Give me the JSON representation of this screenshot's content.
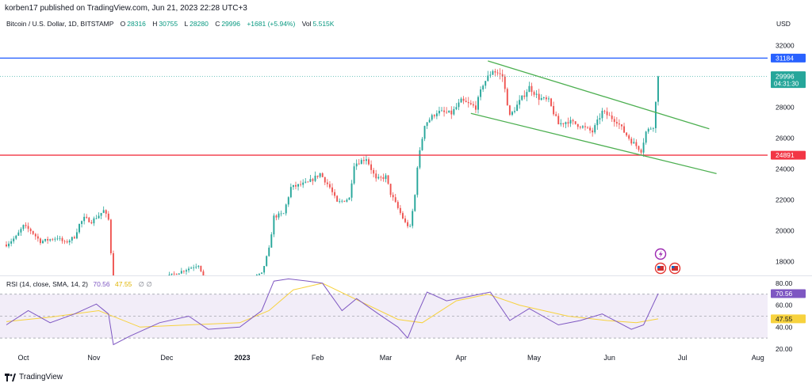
{
  "header": {
    "publish_line": "korben17 published on TradingView.com, Jun 21, 2023 22:28 UTC+3"
  },
  "legend": {
    "symbol": "Bitcoin / U.S. Dollar, 1D, BITSTAMP",
    "o_label": "O",
    "o_value": "28316",
    "h_label": "H",
    "h_value": "30755",
    "l_label": "L",
    "l_value": "28280",
    "c_label": "C",
    "c_value": "29996",
    "change": "+1681 (+5.94%)",
    "vol_label": "Vol",
    "vol_value": "5.515K"
  },
  "rsi_legend": {
    "label": "RSI (14, close, SMA, 14, 2)",
    "rsi_value": "70.56",
    "sma_value": "47.55",
    "extra": "∅  ∅"
  },
  "price_axis": {
    "unit": "USD",
    "ticks": [
      "32000",
      "28000",
      "26000",
      "24000",
      "22000",
      "20000",
      "18000"
    ],
    "resistance_label": "31184",
    "last_price_label": "29996",
    "countdown_label": "04:31:30",
    "support_label": "24891"
  },
  "rsi_axis": {
    "ticks": [
      "80.00",
      "60.00",
      "40.00",
      "20.00"
    ],
    "rsi_label": "70.56",
    "sma_label": "47.55"
  },
  "time_axis": {
    "ticks": [
      "Oct",
      "Nov",
      "Dec",
      "2023",
      "Feb",
      "Mar",
      "Apr",
      "May",
      "Jun",
      "Jul",
      "Aug"
    ]
  },
  "footer": {
    "brand": "TradingView"
  },
  "colors": {
    "up": "#26a69a",
    "down": "#ef5350",
    "resistance": "#2962ff",
    "support": "#f23645",
    "channel": "#4caf50",
    "rsi": "#7e57c2",
    "rsi_sma": "#f7d23e",
    "rsi_band": "#ede7f6"
  },
  "chart_data": {
    "type": "candlestick",
    "x_range": [
      "2022-09-26",
      "2023-08-05"
    ],
    "price_range": [
      17100,
      33000
    ],
    "resistance": 31184,
    "support": 24891,
    "last_price": 29996,
    "channel": {
      "upper": [
        [
          "2023-04-12",
          31000
        ],
        [
          "2023-07-12",
          26600
        ]
      ],
      "lower": [
        [
          "2023-04-05",
          27600
        ],
        [
          "2023-07-15",
          23700
        ]
      ]
    },
    "close_series": [
      [
        "2022-09-26",
        19100
      ],
      [
        "2022-09-30",
        19600
      ],
      [
        "2022-10-03",
        20300
      ],
      [
        "2022-10-06",
        20000
      ],
      [
        "2022-10-10",
        19300
      ],
      [
        "2022-10-13",
        19400
      ],
      [
        "2022-10-17",
        19550
      ],
      [
        "2022-10-20",
        19200
      ],
      [
        "2022-10-24",
        19600
      ],
      [
        "2022-10-26",
        20400
      ],
      [
        "2022-10-28",
        20800
      ],
      [
        "2022-10-31",
        20600
      ],
      [
        "2022-11-03",
        21000
      ],
      [
        "2022-11-05",
        21300
      ],
      [
        "2022-11-07",
        20700
      ],
      [
        "2022-11-08",
        18600
      ],
      [
        "2022-11-09",
        16500
      ],
      [
        "2022-11-12",
        16800
      ],
      [
        "2022-11-20",
        16300
      ],
      [
        "2022-12-01",
        17000
      ],
      [
        "2022-12-14",
        17800
      ],
      [
        "2022-12-17",
        16700
      ],
      [
        "2022-12-31",
        16600
      ],
      [
        "2023-01-09",
        17200
      ],
      [
        "2023-01-12",
        18800
      ],
      [
        "2023-01-14",
        20900
      ],
      [
        "2023-01-18",
        21100
      ],
      [
        "2023-01-21",
        22800
      ],
      [
        "2023-01-28",
        23100
      ],
      [
        "2023-02-02",
        23700
      ],
      [
        "2023-02-06",
        22800
      ],
      [
        "2023-02-09",
        21800
      ],
      [
        "2023-02-14",
        22100
      ],
      [
        "2023-02-16",
        24300
      ],
      [
        "2023-02-21",
        24700
      ],
      [
        "2023-02-25",
        23300
      ],
      [
        "2023-03-01",
        23500
      ],
      [
        "2023-03-03",
        22400
      ],
      [
        "2023-03-09",
        20500
      ],
      [
        "2023-03-11",
        20200
      ],
      [
        "2023-03-13",
        22300
      ],
      [
        "2023-03-14",
        24200
      ],
      [
        "2023-03-17",
        26900
      ],
      [
        "2023-03-22",
        27700
      ],
      [
        "2023-03-28",
        27600
      ],
      [
        "2023-04-01",
        28400
      ],
      [
        "2023-04-07",
        28000
      ],
      [
        "2023-04-10",
        29500
      ],
      [
        "2023-04-14",
        30400
      ],
      [
        "2023-04-18",
        30000
      ],
      [
        "2023-04-21",
        27400
      ],
      [
        "2023-04-26",
        28600
      ],
      [
        "2023-04-29",
        29300
      ],
      [
        "2023-05-03",
        28600
      ],
      [
        "2023-05-07",
        28400
      ],
      [
        "2023-05-11",
        26900
      ],
      [
        "2023-05-15",
        27100
      ],
      [
        "2023-05-20",
        26800
      ],
      [
        "2023-05-25",
        26400
      ],
      [
        "2023-05-29",
        27700
      ],
      [
        "2023-06-04",
        27100
      ],
      [
        "2023-06-07",
        26400
      ],
      [
        "2023-06-10",
        25800
      ],
      [
        "2023-06-14",
        25200
      ],
      [
        "2023-06-16",
        26400
      ],
      [
        "2023-06-19",
        26800
      ],
      [
        "2023-06-20",
        28300
      ],
      [
        "2023-06-21",
        29996
      ]
    ],
    "rsi": {
      "range": [
        20,
        85
      ],
      "bands": [
        70,
        50,
        30
      ],
      "rsi_series": [
        [
          "2022-09-26",
          42
        ],
        [
          "2022-10-05",
          55
        ],
        [
          "2022-10-14",
          44
        ],
        [
          "2022-10-24",
          52
        ],
        [
          "2022-11-02",
          61
        ],
        [
          "2022-11-07",
          52
        ],
        [
          "2022-11-09",
          24
        ],
        [
          "2022-11-16",
          32
        ],
        [
          "2022-11-28",
          44
        ],
        [
          "2022-12-10",
          50
        ],
        [
          "2022-12-18",
          38
        ],
        [
          "2022-12-31",
          40
        ],
        [
          "2023-01-09",
          55
        ],
        [
          "2023-01-14",
          82
        ],
        [
          "2023-01-20",
          84
        ],
        [
          "2023-01-28",
          82
        ],
        [
          "2023-02-03",
          80
        ],
        [
          "2023-02-11",
          55
        ],
        [
          "2023-02-17",
          66
        ],
        [
          "2023-02-26",
          52
        ],
        [
          "2023-03-06",
          40
        ],
        [
          "2023-03-10",
          30
        ],
        [
          "2023-03-14",
          52
        ],
        [
          "2023-03-18",
          72
        ],
        [
          "2023-03-26",
          64
        ],
        [
          "2023-04-02",
          67
        ],
        [
          "2023-04-13",
          72
        ],
        [
          "2023-04-21",
          46
        ],
        [
          "2023-04-29",
          57
        ],
        [
          "2023-05-11",
          42
        ],
        [
          "2023-05-20",
          46
        ],
        [
          "2023-05-29",
          52
        ],
        [
          "2023-06-10",
          38
        ],
        [
          "2023-06-15",
          42
        ],
        [
          "2023-06-21",
          70.56
        ]
      ],
      "sma_series": [
        [
          "2022-09-26",
          45
        ],
        [
          "2022-10-14",
          49
        ],
        [
          "2022-11-03",
          55
        ],
        [
          "2022-11-20",
          40
        ],
        [
          "2022-12-10",
          42
        ],
        [
          "2022-12-31",
          44
        ],
        [
          "2023-01-12",
          55
        ],
        [
          "2023-01-22",
          74
        ],
        [
          "2023-02-03",
          80
        ],
        [
          "2023-02-18",
          64
        ],
        [
          "2023-03-06",
          47
        ],
        [
          "2023-03-16",
          44
        ],
        [
          "2023-03-30",
          64
        ],
        [
          "2023-04-12",
          70
        ],
        [
          "2023-04-25",
          60
        ],
        [
          "2023-05-15",
          50
        ],
        [
          "2023-05-31",
          46
        ],
        [
          "2023-06-12",
          44
        ],
        [
          "2023-06-21",
          47.55
        ]
      ]
    }
  }
}
